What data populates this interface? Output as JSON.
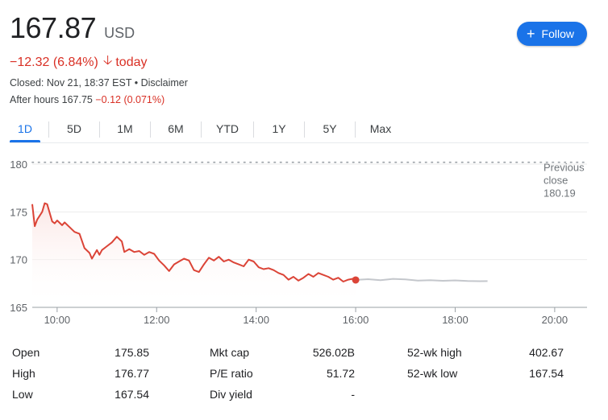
{
  "quote": {
    "price": "167.87",
    "currency": "USD",
    "change": "−12.32 (6.84%)",
    "change_period": "today",
    "closed_line": "Closed: Nov 21, 18:37 EST • Disclaimer",
    "after_hours_prefix": "After hours 167.75",
    "after_hours_change": "−0.12 (0.071%)"
  },
  "follow_button": {
    "label": "Follow"
  },
  "tabs": [
    {
      "label": "1D",
      "active": true
    },
    {
      "label": "5D"
    },
    {
      "label": "1M"
    },
    {
      "label": "6M"
    },
    {
      "label": "YTD"
    },
    {
      "label": "1Y"
    },
    {
      "label": "5Y"
    },
    {
      "label": "Max"
    }
  ],
  "chart_data": {
    "type": "line",
    "y_ticks": [
      180,
      175,
      170,
      165
    ],
    "ylim": [
      165,
      181.6
    ],
    "x_ticks": [
      "10:00",
      "12:00",
      "14:00",
      "16:00",
      "18:00",
      "20:00"
    ],
    "xlim_hours": [
      9.5,
      20.65
    ],
    "previous_close": {
      "label_lines": [
        "Previous",
        "close"
      ],
      "value": 180.19,
      "value_label": "180.19"
    },
    "colors": {
      "regular": "#db4437",
      "after_hours": "#c4c7cc",
      "grid": "#ebebeb",
      "prev_close": "#9aa0a6"
    },
    "series": [
      {
        "session": "regular",
        "x_hours": [
          9.5,
          9.55,
          9.6,
          9.7,
          9.75,
          9.8,
          9.9,
          9.95,
          10.0,
          10.1,
          10.15,
          10.25,
          10.35,
          10.45,
          10.55,
          10.65,
          10.7,
          10.8,
          10.85,
          10.9,
          11.0,
          11.1,
          11.2,
          11.3,
          11.35,
          11.45,
          11.55,
          11.65,
          11.75,
          11.85,
          11.95,
          12.05,
          12.15,
          12.25,
          12.35,
          12.45,
          12.55,
          12.65,
          12.75,
          12.85,
          12.95,
          13.05,
          13.15,
          13.25,
          13.35,
          13.45,
          13.55,
          13.65,
          13.75,
          13.85,
          13.95,
          14.05,
          14.15,
          14.25,
          14.35,
          14.45,
          14.55,
          14.65,
          14.75,
          14.85,
          14.95,
          15.05,
          15.15,
          15.25,
          15.35,
          15.45,
          15.55,
          15.65,
          15.75,
          15.85,
          15.95,
          16.0
        ],
        "y": [
          175.8,
          173.5,
          174.2,
          175.0,
          175.9,
          175.8,
          174.0,
          173.8,
          174.1,
          173.6,
          173.9,
          173.4,
          172.9,
          172.7,
          171.2,
          170.7,
          170.1,
          171.0,
          170.5,
          171.0,
          171.4,
          171.8,
          172.4,
          171.9,
          170.8,
          171.1,
          170.8,
          170.9,
          170.5,
          170.8,
          170.6,
          169.9,
          169.4,
          168.8,
          169.5,
          169.8,
          170.1,
          169.9,
          168.9,
          168.7,
          169.5,
          170.2,
          169.9,
          170.3,
          169.8,
          170.0,
          169.7,
          169.5,
          169.3,
          170.0,
          169.8,
          169.2,
          169.0,
          169.1,
          168.9,
          168.6,
          168.4,
          167.9,
          168.2,
          167.8,
          168.1,
          168.5,
          168.2,
          168.6,
          168.4,
          168.2,
          167.9,
          168.1,
          167.7,
          167.9,
          168.0,
          167.87
        ]
      },
      {
        "session": "after_hours",
        "x_hours": [
          16.0,
          16.25,
          16.5,
          16.75,
          17.0,
          17.25,
          17.5,
          17.75,
          18.0,
          18.25,
          18.5,
          18.65
        ],
        "y": [
          167.87,
          167.95,
          167.85,
          167.98,
          167.92,
          167.8,
          167.85,
          167.78,
          167.82,
          167.76,
          167.74,
          167.75
        ]
      }
    ]
  },
  "stats": [
    {
      "label": "Open",
      "value": "175.85"
    },
    {
      "label": "High",
      "value": "176.77"
    },
    {
      "label": "Low",
      "value": "167.54"
    },
    {
      "label": "Mkt cap",
      "value": "526.02B"
    },
    {
      "label": "P/E ratio",
      "value": "51.72"
    },
    {
      "label": "Div yield",
      "value": "-"
    },
    {
      "label": "52-wk high",
      "value": "402.67"
    },
    {
      "label": "52-wk low",
      "value": "167.54"
    }
  ]
}
